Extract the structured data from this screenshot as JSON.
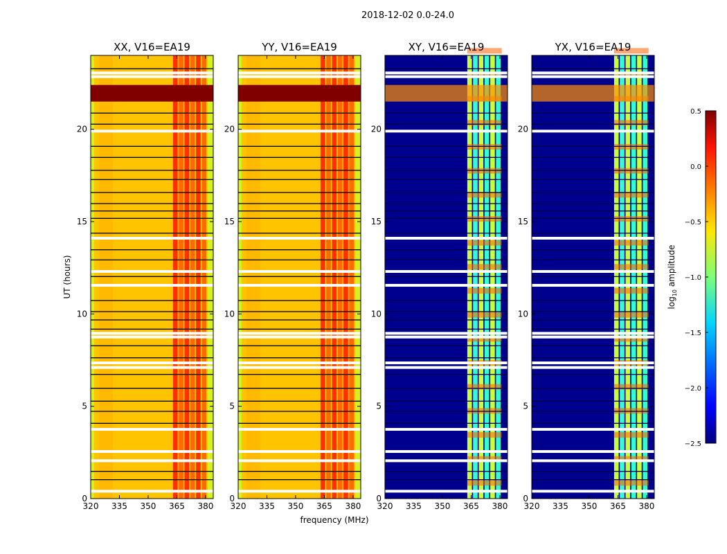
{
  "chart_data": {
    "type": "heatmap",
    "suptitle": "2018-12-02 0.0-24.0",
    "xlabel": "frequency (MHz)",
    "ylabel": "UT (hours)",
    "xlim": [
      320,
      384
    ],
    "ylim": [
      0,
      24
    ],
    "xticks": [
      "320",
      "335",
      "350",
      "365",
      "380"
    ],
    "xtick_values": [
      320,
      335,
      350,
      365,
      380
    ],
    "yticks": [
      "0",
      "5",
      "10",
      "15",
      "20"
    ],
    "ytick_values": [
      0,
      5,
      10,
      15,
      20
    ],
    "rfi_band_mhz": [
      363,
      381
    ],
    "flagged_white_rows_hours": [
      0.4,
      2.05,
      2.55,
      3.75,
      7.1,
      7.35,
      8.75,
      8.95,
      11.55,
      12.3,
      14.1,
      19.9,
      22.85,
      23.05
    ],
    "black_line_rows_hours": [
      1.05,
      1.5,
      2.6,
      4.1,
      4.75,
      5.3,
      6.0,
      6.75,
      7.65,
      8.3,
      9.2,
      9.7,
      10.15,
      10.75,
      12.05,
      12.95,
      13.5,
      14.4,
      15.2,
      15.6,
      16.0,
      16.6,
      17.3,
      17.8,
      18.5,
      19.1,
      20.3,
      20.9,
      23.1,
      23.3
    ],
    "panels": [
      {
        "title": "XX, V16=EA19",
        "kind": "parallel"
      },
      {
        "title": "YY, V16=EA19",
        "kind": "parallel"
      },
      {
        "title": "XY, V16=EA19",
        "kind": "cross"
      },
      {
        "title": "YX, V16=EA19",
        "kind": "cross"
      }
    ],
    "colorbar": {
      "label": "log10 amplitude",
      "range": [
        -2.5,
        0.5
      ],
      "ticks": [
        "0.5",
        "0.0",
        "−0.5",
        "−1.0",
        "−1.5",
        "−2.0",
        "−2.5"
      ],
      "tick_values": [
        0.5,
        0.0,
        -0.5,
        -1.0,
        -1.5,
        -2.0,
        -2.5
      ],
      "colormap": "jet"
    },
    "colors": {
      "parallel_base": "#ffc400",
      "parallel_edge": "#d8f020",
      "parallel_rfi": "#ff3000",
      "parallel_flare": "#800000",
      "cross_base": "#00008f",
      "cross_rfi_a": "#30ffd0",
      "cross_rfi_b": "#ff6000",
      "flag": "#ffffff",
      "line": "#000000"
    },
    "flare_hours": [
      21.5,
      22.4
    ]
  }
}
